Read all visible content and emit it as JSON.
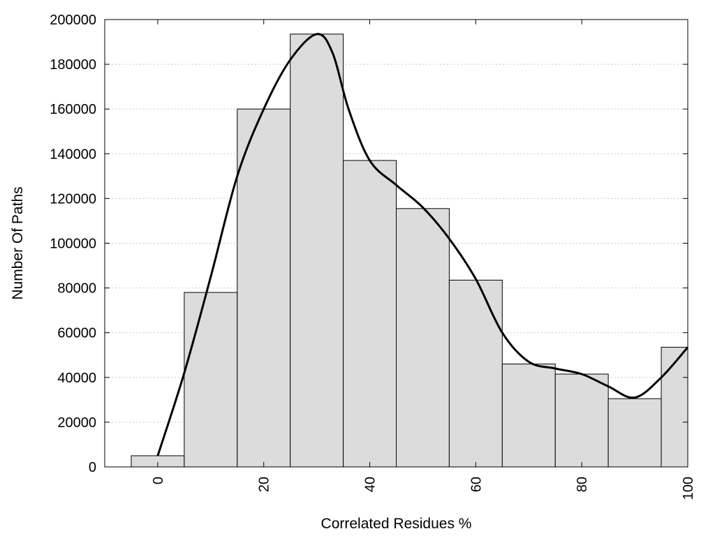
{
  "chart_data": {
    "type": "bar",
    "xlabel": "Correlated Residues %",
    "ylabel": "Number Of Paths",
    "xlim": [
      -10,
      100
    ],
    "ylim": [
      0,
      200000
    ],
    "bin_width": 10,
    "x_ticks": [
      0,
      20,
      40,
      60,
      80,
      100
    ],
    "y_ticks": [
      0,
      20000,
      40000,
      60000,
      80000,
      100000,
      120000,
      140000,
      160000,
      180000,
      200000
    ],
    "grid": "horizontal-dotted",
    "bar_color": "#dcdcdc",
    "bins": [
      {
        "center": 0,
        "value": 5000
      },
      {
        "center": 10,
        "value": 78000
      },
      {
        "center": 20,
        "value": 160000
      },
      {
        "center": 30,
        "value": 193500
      },
      {
        "center": 40,
        "value": 137000
      },
      {
        "center": 50,
        "value": 115500
      },
      {
        "center": 60,
        "value": 83500
      },
      {
        "center": 70,
        "value": 46000
      },
      {
        "center": 80,
        "value": 41500
      },
      {
        "center": 90,
        "value": 30500
      },
      {
        "center": 100,
        "value": 53500
      }
    ],
    "curve": {
      "x": [
        0,
        5,
        10,
        15,
        20,
        25,
        30,
        33,
        36,
        40,
        45,
        50,
        55,
        60,
        65,
        70,
        75,
        80,
        85,
        90,
        95,
        100
      ],
      "y": [
        5000,
        42000,
        85000,
        130000,
        160000,
        182000,
        193500,
        185000,
        160000,
        137000,
        126000,
        116000,
        102000,
        84000,
        60000,
        47000,
        44000,
        41500,
        36000,
        31000,
        40000,
        53500
      ]
    }
  }
}
